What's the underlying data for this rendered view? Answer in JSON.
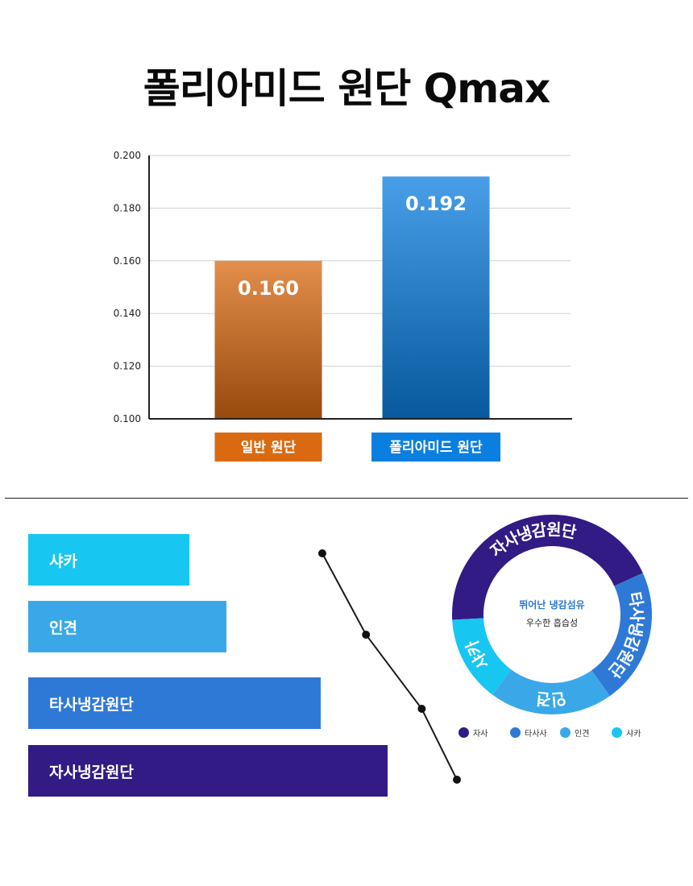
{
  "title": "폴리아미드 원단 Qmax",
  "chart_data": [
    {
      "type": "bar",
      "categories": [
        "일반 원단",
        "폴리아미드 원단"
      ],
      "values": [
        0.16,
        0.192
      ],
      "value_labels": [
        "0.160",
        "0.192"
      ],
      "ylim": [
        0.1,
        0.2
      ],
      "yticks": [
        "0.100",
        "0.120",
        "0.140",
        "0.160",
        "0.180",
        "0.200"
      ],
      "grid": true,
      "colors": [
        "#d96a12",
        "#0b7fe0"
      ]
    },
    {
      "type": "bar",
      "orientation": "horizontal",
      "categories": [
        "샤카",
        "인견",
        "타사냉감원단",
        "자사냉감원단"
      ],
      "relative_values": [
        0.43,
        0.53,
        0.78,
        0.96
      ],
      "colors": [
        "#18c6f2",
        "#3aa8e8",
        "#2f79d6",
        "#321b84"
      ],
      "trend_line": [
        0.686,
        0.788,
        0.918,
        1.0
      ]
    },
    {
      "type": "pie",
      "style": "donut",
      "labels": [
        "자사냉감원단",
        "타사냉감원단",
        "인견",
        "샤카"
      ],
      "shares": [
        44,
        22,
        20,
        14
      ],
      "colors": [
        "#321b84",
        "#2f79d6",
        "#3aa8e8",
        "#18c6f2"
      ],
      "center_title": "뛰어난 냉감섬유",
      "center_subtitle": "우수한 흡습성",
      "legend": [
        "자사",
        "타사사",
        "인견",
        "샤카"
      ]
    }
  ]
}
